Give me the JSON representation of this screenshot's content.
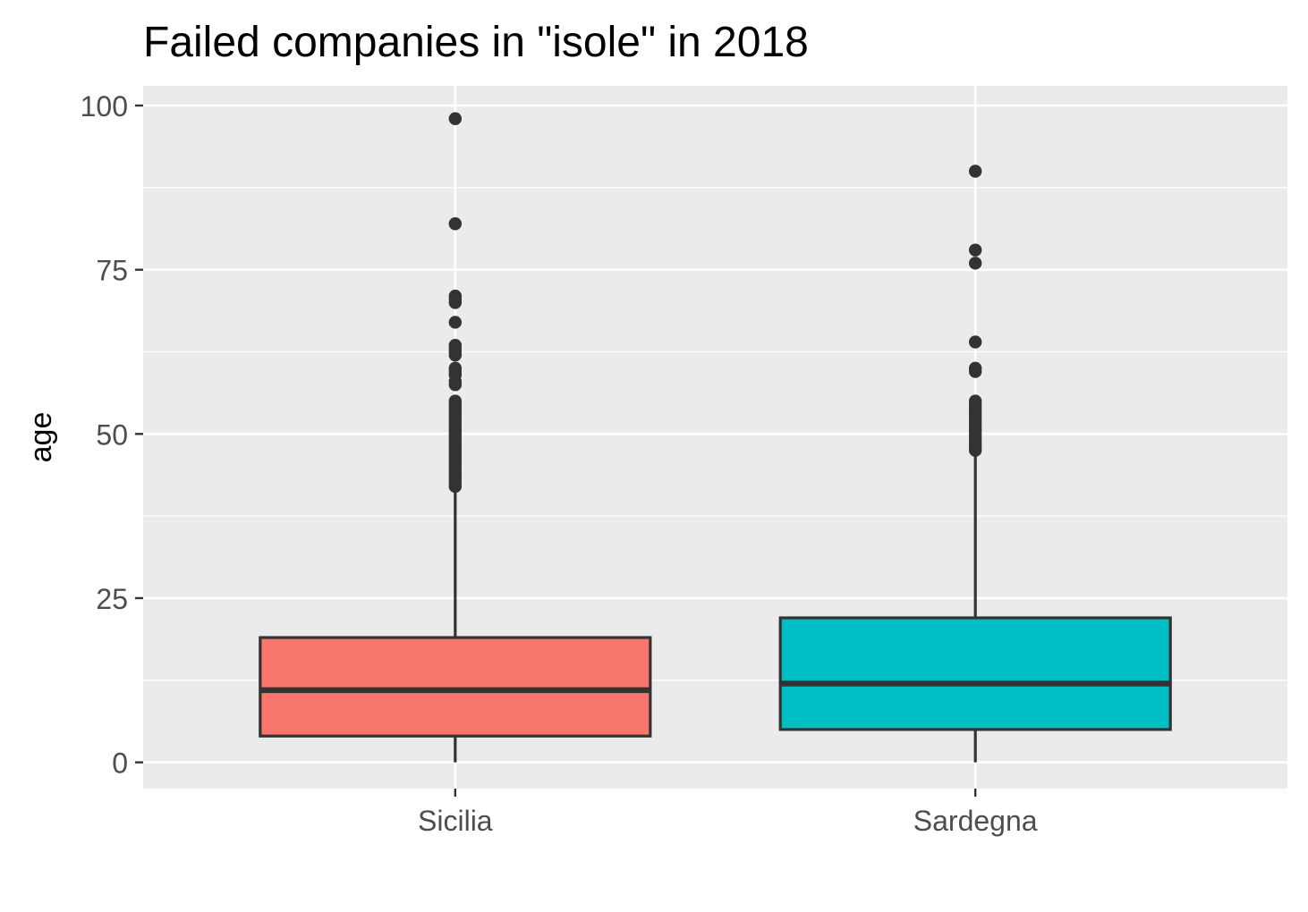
{
  "chart_data": {
    "type": "boxplot",
    "title": "Failed companies in \"isole\" in 2018",
    "xlabel": "",
    "ylabel": "age",
    "ylim": [
      -4,
      103
    ],
    "yticks": [
      0,
      25,
      50,
      75,
      100
    ],
    "y_minor_ticks": [
      12.5,
      37.5,
      62.5,
      87.5
    ],
    "grid": true,
    "legend": "none",
    "categories": [
      "Sicilia",
      "Sardegna"
    ],
    "series": [
      {
        "category": "Sicilia",
        "color": "#F8766D",
        "whisker_low": 0,
        "q1": 4,
        "median": 11,
        "q3": 19,
        "whisker_high": 41.5,
        "outliers": [
          42,
          42.5,
          43,
          43.5,
          44,
          44.5,
          45,
          45.5,
          46,
          46.5,
          47,
          47.5,
          48,
          48.5,
          49,
          49.5,
          50,
          50.5,
          51,
          51.5,
          52,
          52.5,
          53,
          53.5,
          54,
          54.5,
          55,
          57.5,
          58,
          59,
          59.5,
          60,
          62,
          62.5,
          63,
          63.5,
          67,
          70,
          70.5,
          71,
          82,
          98
        ]
      },
      {
        "category": "Sardegna",
        "color": "#00BFC4",
        "whisker_low": 0,
        "q1": 5,
        "median": 12,
        "q3": 22,
        "whisker_high": 47,
        "outliers": [
          47.5,
          48,
          48.5,
          49,
          49.5,
          50,
          50.5,
          51,
          51.5,
          52,
          52.5,
          53,
          53.5,
          54,
          54.5,
          55,
          59.5,
          60,
          64,
          76,
          78,
          90
        ]
      }
    ]
  }
}
